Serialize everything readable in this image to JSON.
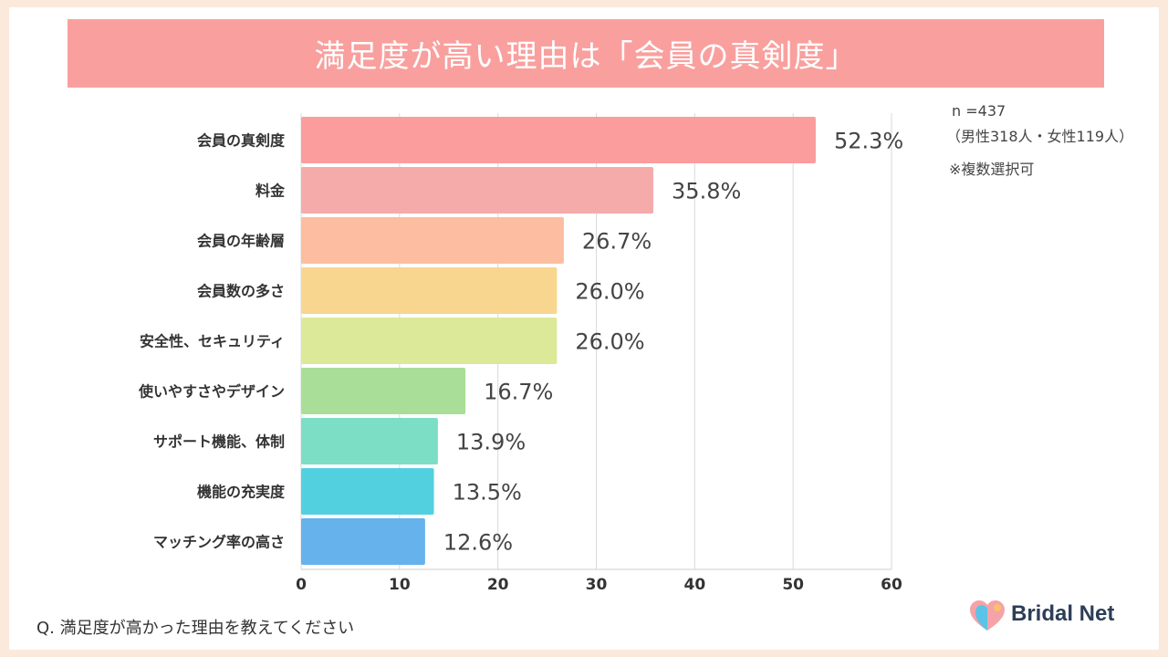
{
  "title": "満足度が高い理由は「会員の真剣度」",
  "sample_size": "n =437",
  "sample_breakdown": "（男性318人・女性119人）",
  "multiple_answers_note": "※複数選択可",
  "question": "Q. 満足度が高かった理由を教えてください",
  "brand": "Bridal Net",
  "colors": {
    "frame": "#fbe9dc",
    "title_bar": "#f9a09e",
    "logo_text": "#2c3e57"
  },
  "chart_data": {
    "type": "bar",
    "orientation": "horizontal",
    "categories": [
      "会員の真剣度",
      "料金",
      "会員の年齢層",
      "会員数の多さ",
      "安全性、セキュリティ",
      "使いやすさやデザイン",
      "サポート機能、体制",
      "機能の充実度",
      "マッチング率の高さ"
    ],
    "values": [
      52.3,
      35.8,
      26.7,
      26.0,
      26.0,
      16.7,
      13.9,
      13.5,
      12.6
    ],
    "value_labels": [
      "52.3%",
      "35.8%",
      "26.7%",
      "26.0%",
      "26.0%",
      "16.7%",
      "13.9%",
      "13.5%",
      "12.6%"
    ],
    "bar_colors": [
      "#fc9d9d",
      "#f6abab",
      "#fcbda0",
      "#f8d68f",
      "#dce999",
      "#a9de98",
      "#7cdec4",
      "#52d0e0",
      "#65b2ec"
    ],
    "xlim": [
      0,
      60
    ],
    "xticks": [
      0,
      10,
      20,
      30,
      40,
      50,
      60
    ],
    "grid": true,
    "xlabel": "",
    "ylabel": ""
  }
}
